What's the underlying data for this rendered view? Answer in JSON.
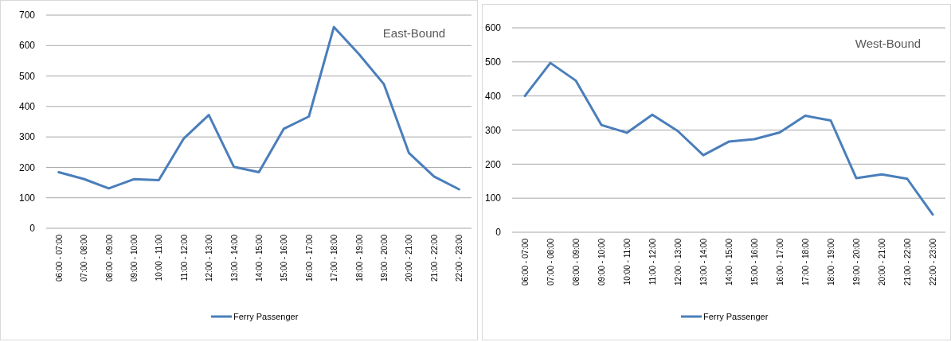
{
  "chart_data": [
    {
      "type": "line",
      "annotations": [
        "East-Bound"
      ],
      "categories": [
        "06:00 - 07:00",
        "07:00 - 08:00",
        "08:00 - 09:00",
        "09:00 - 10:00",
        "10:00 - 11:00",
        "11:00 - 12:00",
        "12:00 - 13:00",
        "13:00 - 14:00",
        "14:00 - 15:00",
        "15:00 - 16:00",
        "16:00 - 17:00",
        "17:00 - 18:00",
        "18:00 - 19:00",
        "19:00 - 20:00",
        "20:00 - 21:00",
        "21:00 - 22:00",
        "22:00 - 23:00"
      ],
      "series": [
        {
          "name": "Ferry Passenger",
          "color": "#4a7ebb",
          "values": [
            184,
            162,
            131,
            161,
            158,
            295,
            372,
            202,
            184,
            327,
            367,
            661,
            572,
            473,
            247,
            170,
            128
          ]
        }
      ],
      "ylim": [
        0,
        700
      ],
      "yticks": [
        0,
        100,
        200,
        300,
        400,
        500,
        600,
        700
      ],
      "grid": "y",
      "legend": "bottom",
      "marker": "none",
      "line_style": "solid"
    },
    {
      "type": "line",
      "annotations": [
        "West-Bound"
      ],
      "categories": [
        "06:00 - 07:00",
        "07:00 - 08:00",
        "08:00 - 09:00",
        "09:00 - 10:00",
        "10:00 - 11:00",
        "11:00 - 12:00",
        "12:00 - 13:00",
        "13:00 - 14:00",
        "14:00 - 15:00",
        "15:00 - 16:00",
        "16:00 - 17:00",
        "17:00 - 18:00",
        "18:00 - 19:00",
        "19:00 - 20:00",
        "20:00 - 21:00",
        "21:00 - 22:00",
        "22:00 - 23:00"
      ],
      "series": [
        {
          "name": "Ferry Passenger",
          "color": "#4a7ebb",
          "values": [
            400,
            497,
            445,
            315,
            292,
            345,
            297,
            226,
            266,
            273,
            293,
            342,
            328,
            159,
            170,
            157,
            52
          ]
        }
      ],
      "ylim": [
        0,
        600
      ],
      "yticks": [
        0,
        100,
        200,
        300,
        400,
        500,
        600
      ],
      "grid": "y",
      "legend": "bottom",
      "marker": "none",
      "line_style": "solid"
    }
  ]
}
